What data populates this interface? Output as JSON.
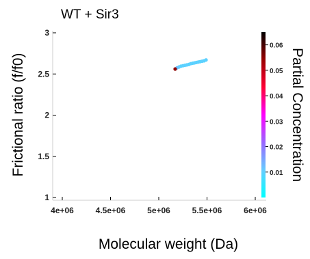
{
  "chart_data": {
    "type": "scatter",
    "title": "WT + Sir3",
    "xlabel": "Molecular weight (Da)",
    "ylabel": "Frictional ratio (f/f0)",
    "xlim": [
      4000000,
      6000000
    ],
    "ylim": [
      1,
      3
    ],
    "xticks": [
      {
        "value": 4000000,
        "label": "4e+06"
      },
      {
        "value": 4500000,
        "label": "4.5e+06"
      },
      {
        "value": 5000000,
        "label": "5e+06"
      },
      {
        "value": 5500000,
        "label": "5.5e+06"
      },
      {
        "value": 6000000,
        "label": "6e+06"
      }
    ],
    "yticks": [
      {
        "value": 1,
        "label": "1"
      },
      {
        "value": 1.5,
        "label": "1.5"
      },
      {
        "value": 2,
        "label": "2"
      },
      {
        "value": 2.5,
        "label": "2.5"
      },
      {
        "value": 3,
        "label": "3"
      }
    ],
    "colorbar": {
      "label": "Partial Concentration",
      "range": [
        0,
        0.065
      ],
      "ticks": [
        {
          "value": 0.01,
          "label": "0.01"
        },
        {
          "value": 0.02,
          "label": "0.02"
        },
        {
          "value": 0.03,
          "label": "0.03"
        },
        {
          "value": 0.04,
          "label": "0.04"
        },
        {
          "value": 0.05,
          "label": "0.05"
        },
        {
          "value": 0.06,
          "label": "0.06"
        }
      ],
      "colors": [
        "#00ffff",
        "#66ccff",
        "#9966ff",
        "#ff00ff",
        "#ff0033",
        "#990000",
        "#000000"
      ]
    },
    "grid": false,
    "points": [
      {
        "x": 5170000,
        "y": 2.56,
        "c": 0.055
      },
      {
        "x": 5190000,
        "y": 2.575,
        "c": 0.012
      },
      {
        "x": 5210000,
        "y": 2.585,
        "c": 0.01
      },
      {
        "x": 5230000,
        "y": 2.595,
        "c": 0.009
      },
      {
        "x": 5250000,
        "y": 2.6,
        "c": 0.01
      },
      {
        "x": 5270000,
        "y": 2.605,
        "c": 0.009
      },
      {
        "x": 5290000,
        "y": 2.61,
        "c": 0.01
      },
      {
        "x": 5310000,
        "y": 2.615,
        "c": 0.009
      },
      {
        "x": 5330000,
        "y": 2.625,
        "c": 0.01
      },
      {
        "x": 5350000,
        "y": 2.63,
        "c": 0.009
      },
      {
        "x": 5370000,
        "y": 2.635,
        "c": 0.01
      },
      {
        "x": 5390000,
        "y": 2.64,
        "c": 0.009
      },
      {
        "x": 5410000,
        "y": 2.645,
        "c": 0.01
      },
      {
        "x": 5430000,
        "y": 2.65,
        "c": 0.009
      },
      {
        "x": 5450000,
        "y": 2.655,
        "c": 0.01
      },
      {
        "x": 5470000,
        "y": 2.66,
        "c": 0.009
      },
      {
        "x": 5490000,
        "y": 2.67,
        "c": 0.01
      }
    ]
  }
}
